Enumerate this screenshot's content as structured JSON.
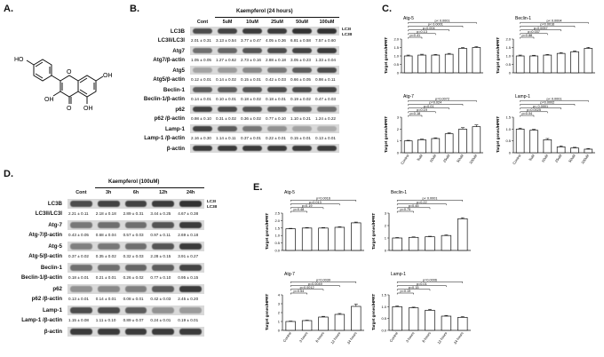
{
  "figure": {
    "panel_letters": {
      "A": "A.",
      "B": "B.",
      "C": "C.",
      "D": "D.",
      "E": "E."
    },
    "panel_B": {
      "treatment_title": "Kaempferol (24 hours)",
      "lanes": [
        "Cont",
        "5uM",
        "10uM",
        "25uM",
        "50uM",
        "100uM"
      ],
      "side_tags": [
        "LC3I",
        "LC3II"
      ],
      "rows": [
        {
          "label": "LC3B",
          "type": "blot",
          "intensity": [
            0.8,
            0.85,
            0.9,
            0.9,
            0.95,
            0.95
          ]
        },
        {
          "label": "LC3II/LC3I",
          "type": "quant",
          "values": [
            "2.01 ± 0.31",
            "3.13 ± 0.54",
            "3.77 ± 0.47",
            "4.05 ± 0.36",
            "6.81 ± 0.58",
            "7.57 ± 0.60"
          ]
        },
        {
          "label": "Atg7",
          "type": "blot",
          "intensity": [
            0.6,
            0.65,
            0.75,
            0.8,
            0.85,
            0.9
          ]
        },
        {
          "label": "Atg7/β-actin",
          "type": "quant",
          "values": [
            "1.05 ± 0.05",
            "1.27 ± 0.62",
            "2.73 ± 0.16",
            "2.88 ± 0.18",
            "3.05 ± 0.23",
            "1.33 ± 0.04"
          ]
        },
        {
          "label": "Atg5",
          "type": "blot",
          "intensity": [
            0.3,
            0.35,
            0.45,
            0.55,
            0.7,
            0.8
          ]
        },
        {
          "label": "Atg5/β-actin",
          "type": "quant",
          "values": [
            "0.12 ± 0.01",
            "0.14 ± 0.02",
            "0.15 ± 0.01",
            "0.42 ± 0.03",
            "0.66 ± 0.05",
            "0.98 ± 0.11"
          ]
        },
        {
          "label": "Beclin-1",
          "type": "blot",
          "intensity": [
            0.7,
            0.7,
            0.75,
            0.8,
            0.8,
            0.85
          ]
        },
        {
          "label": "Beclin-1/β-actin",
          "type": "quant",
          "values": [
            "0.14 ± 0.01",
            "0.10 ± 0.01",
            "0.18 ± 0.02",
            "0.18 ± 0.01",
            "0.19 ± 0.02",
            "0.47 ± 0.03"
          ]
        },
        {
          "label": "p62",
          "type": "blot",
          "intensity": [
            0.85,
            0.8,
            0.75,
            0.7,
            0.65,
            0.6
          ]
        },
        {
          "label": "p62 /β-actin",
          "type": "quant",
          "values": [
            "0.98 ± 0.10",
            "0.31 ± 0.02",
            "0.36 ± 0.02",
            "0.77 ± 0.10",
            "1.10 ± 0.21",
            "1.24 ± 0.22"
          ]
        },
        {
          "label": "Lamp-1",
          "type": "blot",
          "intensity": [
            0.85,
            0.7,
            0.55,
            0.4,
            0.3,
            0.25
          ]
        },
        {
          "label": "Lamp-1 /β-actin",
          "type": "quant",
          "values": [
            "2.16 ± 0.30",
            "1.14 ± 0.11",
            "0.37 ± 0.01",
            "0.22 ± 0.01",
            "0.15 ± 0.01",
            "0.13 ± 0.01"
          ]
        },
        {
          "label": "β-actin",
          "type": "blot",
          "intensity": [
            0.9,
            0.9,
            0.9,
            0.9,
            0.9,
            0.9
          ]
        }
      ]
    },
    "panel_D": {
      "treatment_title": "Kaempferol (100uM)",
      "lanes": [
        "Cont",
        "3h",
        "6h",
        "12h",
        "24h"
      ],
      "side_tags": [
        "LC3I",
        "LC3II"
      ],
      "rows": [
        {
          "label": "LC3B",
          "type": "blot",
          "intensity": [
            0.8,
            0.85,
            0.85,
            0.9,
            0.95
          ]
        },
        {
          "label": "LC3II/LC3I",
          "type": "quant",
          "values": [
            "2.21 ± 0.11",
            "2.18 ± 0.18",
            "2.89 ± 0.31",
            "3.44 ± 0.25",
            "4.67 ± 0.38"
          ]
        },
        {
          "label": "Atg-7",
          "type": "blot",
          "intensity": [
            0.55,
            0.6,
            0.6,
            0.75,
            0.9
          ]
        },
        {
          "label": "Atg-7/β-actin",
          "type": "quant",
          "values": [
            "0.43 ± 0.05",
            "0.68 ± 0.04",
            "0.57 ± 0.03",
            "0.97 ± 0.11",
            "2.69 ± 0.18"
          ]
        },
        {
          "label": "Atg-5",
          "type": "blot",
          "intensity": [
            0.5,
            0.55,
            0.6,
            0.75,
            0.9
          ]
        },
        {
          "label": "Atg-5/β-actin",
          "type": "quant",
          "values": [
            "0.37 ± 0.02",
            "0.35 ± 0.02",
            "0.32 ± 0.03",
            "2.28 ± 0.15",
            "3.91 ± 0.27"
          ]
        },
        {
          "label": "Beclin-1",
          "type": "blot",
          "intensity": [
            0.6,
            0.6,
            0.65,
            0.7,
            0.85
          ]
        },
        {
          "label": "Beclin-1/β-actin",
          "type": "quant",
          "values": [
            "0.18 ± 0.01",
            "0.21 ± 0.01",
            "0.26 ± 0.02",
            "0.77 ± 0.10",
            "0.95 ± 0.15"
          ]
        },
        {
          "label": "p62",
          "type": "blot",
          "intensity": [
            0.4,
            0.45,
            0.5,
            0.7,
            0.9
          ]
        },
        {
          "label": "p62 /β-actin",
          "type": "quant",
          "values": [
            "0.13 ± 0.01",
            "0.14 ± 0.01",
            "0.08 ± 0.01",
            "0.42 ± 0.03",
            "2.45 ± 0.20"
          ]
        },
        {
          "label": "Lamp-1",
          "type": "blot",
          "intensity": [
            0.8,
            0.8,
            0.7,
            0.4,
            0.35
          ]
        },
        {
          "label": "Lamp-1 /β-actin",
          "type": "quant",
          "values": [
            "1.15 ± 0.08",
            "1.11 ± 0.10",
            "0.89 ± 0.07",
            "0.24 ± 0.01",
            "0.19 ± 0.01"
          ]
        },
        {
          "label": "β-actin",
          "type": "blot",
          "intensity": [
            0.9,
            0.9,
            0.9,
            0.9,
            0.9
          ]
        }
      ]
    },
    "structure_atoms": [
      "HO",
      "OH",
      "OH",
      "OH",
      "O",
      "O"
    ]
  },
  "chart_data": [
    {
      "panel": "C",
      "title": "Atg-5",
      "type": "bar",
      "ylabel": "Target genes/HPRT",
      "categories": [
        "Control",
        "5uM",
        "10uM",
        "25uM",
        "50uM",
        "100uM"
      ],
      "values": [
        1.0,
        1.05,
        1.05,
        1.1,
        1.45,
        1.5
      ],
      "errors": [
        0.05,
        0.05,
        0.04,
        0.05,
        0.05,
        0.05
      ],
      "ylim": [
        0,
        2.0
      ],
      "yticks": [
        "0",
        "0.5",
        "1.0",
        "1.5",
        "2.0"
      ],
      "pvalues": [
        "p=0.41",
        "p=0.13",
        "p=0.004",
        "p< 0.0001",
        "p< 0.0001"
      ],
      "show_xlabels": false
    },
    {
      "panel": "C",
      "title": "Beclin-1",
      "type": "bar",
      "ylabel": "Target genes/HPRT",
      "categories": [
        "Control",
        "5uM",
        "10uM",
        "25uM",
        "50uM",
        "100uM"
      ],
      "values": [
        1.0,
        1.0,
        1.05,
        1.15,
        1.25,
        1.45
      ],
      "errors": [
        0.05,
        0.04,
        0.04,
        0.05,
        0.05,
        0.06
      ],
      "ylim": [
        0,
        2.0
      ],
      "yticks": [
        "0",
        "0.5",
        "1.0",
        "1.5",
        "2.0"
      ],
      "pvalues": [
        "p=0.88",
        "p=0.037",
        "p=0.0057",
        "p=0.0016",
        "p< 0.0004"
      ],
      "show_xlabels": false
    },
    {
      "panel": "C",
      "title": "Atg-7",
      "type": "bar",
      "ylabel": "Target genes/HPRT",
      "categories": [
        "Control",
        "5uM",
        "10uM",
        "25uM",
        "50uM",
        "100uM"
      ],
      "values": [
        1.0,
        1.1,
        1.2,
        1.6,
        2.0,
        2.2
      ],
      "errors": [
        0.05,
        0.05,
        0.06,
        0.08,
        0.12,
        0.15
      ],
      "ylim": [
        0,
        3
      ],
      "yticks": [
        "0",
        "1",
        "2",
        "3"
      ],
      "pvalues": [
        "p=0.18",
        "p=0.19",
        "p=0.01",
        "p=0.024",
        "p=0.0072"
      ],
      "show_xlabels": true
    },
    {
      "panel": "C",
      "title": "Lamp-1",
      "type": "bar",
      "ylabel": "Target genes/HPRT",
      "categories": [
        "Control",
        "5uM",
        "10uM",
        "25uM",
        "50uM",
        "100uM"
      ],
      "values": [
        1.0,
        0.95,
        0.55,
        0.25,
        0.2,
        0.15
      ],
      "errors": [
        0.04,
        0.04,
        0.05,
        0.04,
        0.03,
        0.03
      ],
      "ylim": [
        0,
        1.5
      ],
      "yticks": [
        "0",
        "0.5",
        "1.0",
        "1.5"
      ],
      "pvalues": [
        "p=0.04",
        "p=0.0025",
        "p< 0.0001",
        "p=0.0002",
        "p< 0.0001"
      ],
      "show_xlabels": true
    },
    {
      "panel": "E",
      "title": "Atg-5",
      "type": "bar",
      "ylabel": "Target genes/HPRT",
      "categories": [
        "Control",
        "3 hours",
        "6 hours",
        "12 hours",
        "24 hours"
      ],
      "values": [
        1.45,
        1.5,
        1.5,
        1.55,
        1.85
      ],
      "errors": [
        0.03,
        0.03,
        0.03,
        0.04,
        0.05
      ],
      "ylim": [
        0,
        2.5
      ],
      "yticks": [
        "0.0",
        "0.5",
        "1.0",
        "1.5",
        "2.0",
        "2.5"
      ],
      "pvalues": [
        "p=0.48",
        "p=0.19",
        "p=0.013",
        "p=0.0016"
      ],
      "show_xlabels": false
    },
    {
      "panel": "E",
      "title": "Beclin-1",
      "type": "bar",
      "ylabel": "Target genes/HPRT",
      "categories": [
        "Control",
        "3 hours",
        "6 hours",
        "12 hours",
        "24 hours"
      ],
      "values": [
        1.0,
        1.05,
        1.1,
        1.2,
        2.55
      ],
      "errors": [
        0.04,
        0.04,
        0.04,
        0.05,
        0.08
      ],
      "ylim": [
        0,
        3
      ],
      "yticks": [
        "0",
        "1",
        "2",
        "3"
      ],
      "pvalues": [
        "p=0.75",
        "p=0.45",
        "p=0.22",
        "p< 0.0001"
      ],
      "show_xlabels": false
    },
    {
      "panel": "E",
      "title": "Atg-7",
      "type": "bar",
      "ylabel": "Target genes/HPRT",
      "categories": [
        "Control",
        "3 hours",
        "6 hours",
        "12 hours",
        "24 hours"
      ],
      "values": [
        1.0,
        1.1,
        1.5,
        1.8,
        2.7
      ],
      "errors": [
        0.05,
        0.05,
        0.08,
        0.1,
        0.25
      ],
      "ylim": [
        0,
        4
      ],
      "yticks": [
        "0",
        "1",
        "2",
        "3",
        "4"
      ],
      "pvalues": [
        "p=0.54",
        "p=0.0012",
        "p=0.0049",
        "p=0.0039"
      ],
      "show_xlabels": true
    },
    {
      "panel": "E",
      "title": "Lamp-1",
      "type": "bar",
      "ylabel": "Target genes/HPRT",
      "categories": [
        "Control",
        "3 hours",
        "6 hours",
        "12 hours",
        "24 hours"
      ],
      "values": [
        1.0,
        0.95,
        0.85,
        0.6,
        0.55
      ],
      "errors": [
        0.03,
        0.03,
        0.04,
        0.03,
        0.03
      ],
      "ylim": [
        0,
        1.5
      ],
      "yticks": [
        "0.0",
        "0.5",
        "1.0",
        "1.5"
      ],
      "pvalues": [
        "p=0.19",
        "p=0.15",
        "p=0.01",
        "p=0.0006"
      ],
      "show_xlabels": true
    }
  ]
}
